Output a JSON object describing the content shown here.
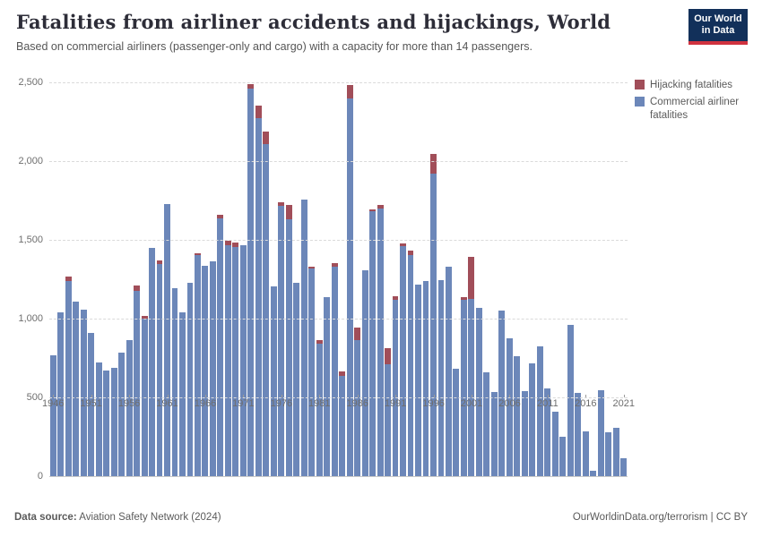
{
  "header": {
    "title": "Fatalities from airliner accidents and hijackings, World",
    "subtitle": "Based on commercial airliners (passenger-only and cargo) with a capacity for more than 14 passengers.",
    "logo": {
      "line1": "Our World",
      "line2": "in Data"
    }
  },
  "legend": {
    "items": [
      {
        "label": "Hijacking fatalities",
        "color": "#a14e59"
      },
      {
        "label": "Commercial airliner fatalities",
        "color": "#6c87b9"
      }
    ]
  },
  "chart_data": {
    "type": "bar",
    "stacked": true,
    "title": "Fatalities from airliner accidents and hijackings, World",
    "xlabel": "",
    "ylabel": "",
    "ylim": [
      0,
      2500
    ],
    "grid": "dashed-horizontal",
    "legend_position": "top-right",
    "ytick_values": [
      0,
      500,
      1000,
      1500,
      2000,
      2500
    ],
    "ytick_labels": [
      "0",
      "500",
      "1,000",
      "1,500",
      "2,000",
      "2,500"
    ],
    "xtick_years": [
      1946,
      1951,
      1956,
      1961,
      1966,
      1971,
      1976,
      1981,
      1986,
      1991,
      1996,
      2001,
      2006,
      2011,
      2016,
      2021
    ],
    "categories": [
      1946,
      1947,
      1948,
      1949,
      1950,
      1951,
      1952,
      1953,
      1954,
      1955,
      1956,
      1957,
      1958,
      1959,
      1960,
      1961,
      1962,
      1963,
      1964,
      1965,
      1966,
      1967,
      1968,
      1969,
      1970,
      1971,
      1972,
      1973,
      1974,
      1975,
      1976,
      1977,
      1978,
      1979,
      1980,
      1981,
      1982,
      1983,
      1984,
      1985,
      1986,
      1987,
      1988,
      1989,
      1990,
      1991,
      1992,
      1993,
      1994,
      1995,
      1996,
      1997,
      1998,
      1999,
      2000,
      2001,
      2002,
      2003,
      2004,
      2005,
      2006,
      2007,
      2008,
      2009,
      2010,
      2011,
      2012,
      2013,
      2014,
      2015,
      2016,
      2017,
      2018,
      2019,
      2020,
      2021
    ],
    "series": [
      {
        "name": "Commercial airliner fatalities",
        "color": "#6c87b9",
        "values": [
          765,
          1040,
          1239,
          1110,
          1055,
          911,
          719,
          671,
          686,
          787,
          862,
          1175,
          998,
          1449,
          1346,
          1726,
          1192,
          1039,
          1230,
          1402,
          1335,
          1363,
          1634,
          1468,
          1456,
          1467,
          2460,
          2275,
          2110,
          1207,
          1714,
          1629,
          1230,
          1755,
          1316,
          842,
          1135,
          1328,
          639,
          2395,
          863,
          1306,
          1682,
          1698,
          710,
          1119,
          1458,
          1405,
          1216,
          1240,
          1920,
          1245,
          1330,
          682,
          1118,
          1127,
          1071,
          658,
          534,
          1052,
          875,
          763,
          538,
          715,
          825,
          556,
          410,
          248,
          960,
          530,
          285,
          34,
          545,
          276,
          309,
          114
        ]
      },
      {
        "name": "Hijacking fatalities",
        "color": "#a14e59",
        "values": [
          0,
          0,
          26,
          0,
          0,
          0,
          0,
          0,
          0,
          0,
          0,
          35,
          17,
          0,
          25,
          0,
          0,
          0,
          0,
          15,
          0,
          0,
          25,
          25,
          25,
          0,
          30,
          80,
          76,
          0,
          25,
          95,
          0,
          0,
          15,
          20,
          0,
          22,
          27,
          90,
          78,
          0,
          10,
          22,
          100,
          25,
          20,
          25,
          0,
          0,
          125,
          0,
          0,
          0,
          20,
          265,
          0,
          0,
          0,
          0,
          0,
          0,
          0,
          0,
          0,
          0,
          0,
          0,
          0,
          0,
          0,
          0,
          0,
          0,
          0,
          0
        ]
      }
    ]
  },
  "footer": {
    "source_label": "Data source:",
    "source_text": " Aviation Safety Network (2024)",
    "right_text": "OurWorldinData.org/terrorism | CC BY"
  }
}
